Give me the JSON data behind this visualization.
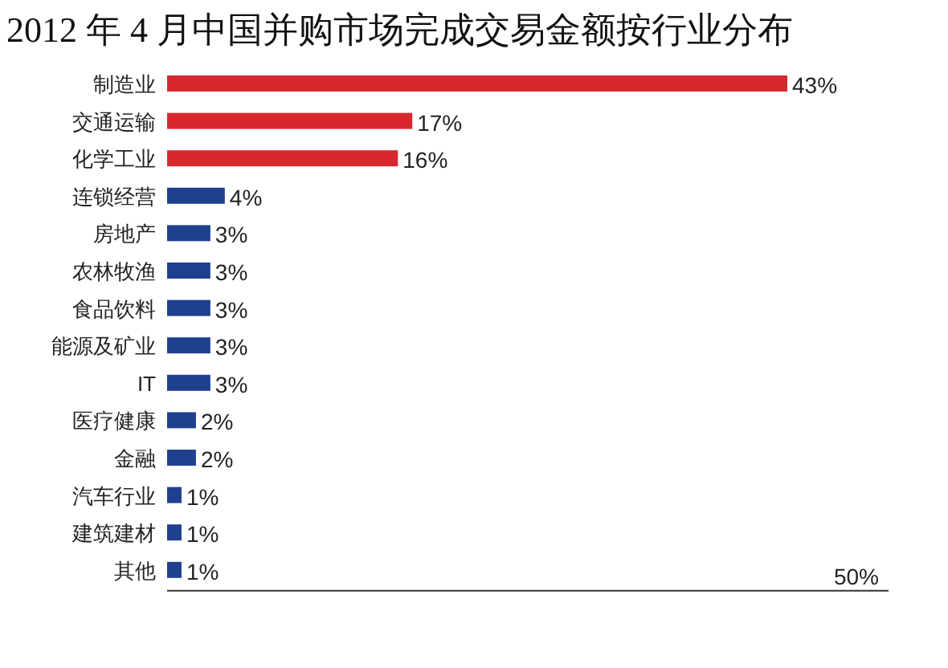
{
  "chart_data": {
    "type": "bar",
    "orientation": "horizontal",
    "title": "2012 年 4 月中国并购市场完成交易金额按行业分布",
    "categories": [
      "制造业",
      "交通运输",
      "化学工业",
      "连锁经营",
      "房地产",
      "农林牧渔",
      "食品饮料",
      "能源及矿业",
      "IT",
      "医疗健康",
      "金融",
      "汽车行业",
      "建筑建材",
      "其他"
    ],
    "values": [
      43,
      17,
      16,
      4,
      3,
      3,
      3,
      3,
      3,
      2,
      2,
      1,
      1,
      1
    ],
    "colors": [
      "#d7282f",
      "#d7282f",
      "#d7282f",
      "#1f3f8f",
      "#1f3f8f",
      "#1f3f8f",
      "#1f3f8f",
      "#1f3f8f",
      "#1f3f8f",
      "#1f3f8f",
      "#1f3f8f",
      "#1f3f8f",
      "#1f3f8f",
      "#1f3f8f"
    ],
    "value_labels": [
      "43%",
      "17%",
      "16%",
      "4%",
      "3%",
      "3%",
      "3%",
      "3%",
      "3%",
      "2%",
      "2%",
      "1%",
      "1%",
      "1%"
    ],
    "annotations": [
      "50%"
    ]
  }
}
